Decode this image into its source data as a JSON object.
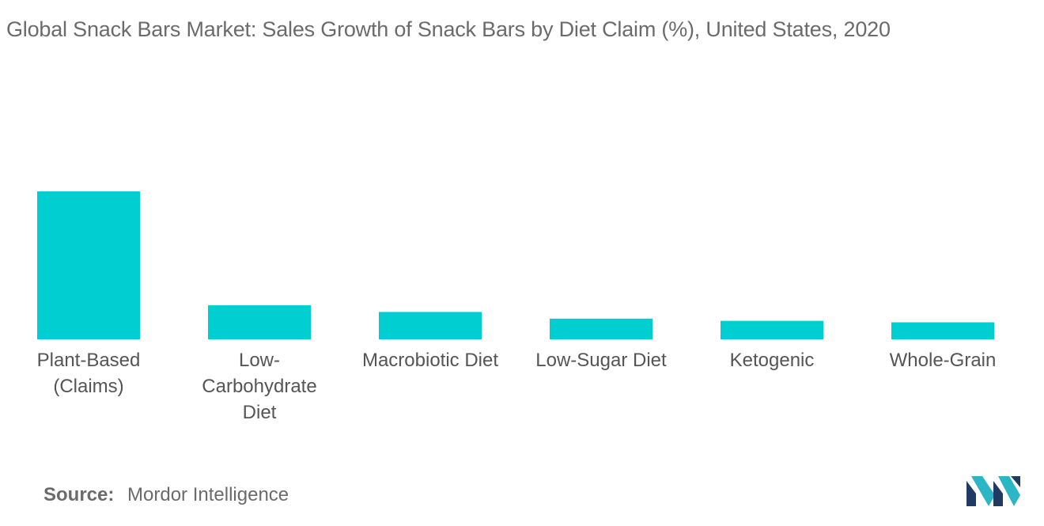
{
  "chart_data": {
    "type": "bar",
    "title": "Global Snack Bars Market: Sales Growth of Snack Bars by Diet Claim (%), United States, 2020",
    "categories": [
      [
        "Plant-Based",
        "(Claims)"
      ],
      [
        "Low-",
        "Carbohydrate",
        "Diet"
      ],
      [
        "Macrobiotic Diet"
      ],
      [
        "Low-Sugar Diet"
      ],
      [
        "Ketogenic"
      ],
      [
        "Whole-Grain"
      ]
    ],
    "values": [
      100,
      23,
      18.5,
      14,
      12.5,
      11.5
    ],
    "ylim": [
      0,
      100
    ],
    "grid": false,
    "legend": "none",
    "bar_color": "#00CED1"
  },
  "footer": {
    "source_key": "Source:",
    "source_value": "Mordor Intelligence"
  },
  "logo": {
    "icon": "mordor-intelligence-logo",
    "colors": [
      "#1f3b64",
      "#2bb5c5"
    ]
  }
}
